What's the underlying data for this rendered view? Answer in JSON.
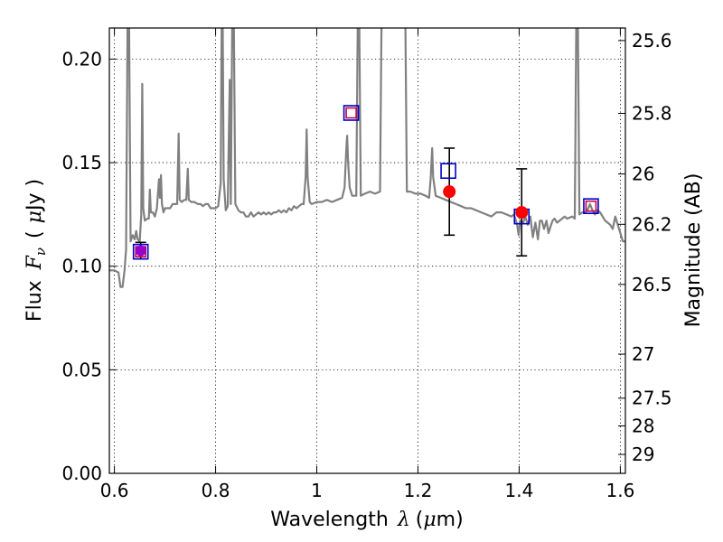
{
  "chart_data": {
    "type": "line",
    "xlabel": {
      "prefix": "Wavelength",
      "symbol": "λ",
      "unit_open": "(",
      "unit_mu": "μ",
      "unit_rest": "m)"
    },
    "ylabel": {
      "prefix": "Flux",
      "symbol": "F",
      "sub": "ν",
      "unit_open": "(",
      "unit_mu": "μ",
      "unit_rest": "Jy )"
    },
    "y2label": "Magnitude (AB)",
    "xlim": [
      0.59,
      1.61
    ],
    "ylim": [
      0.0,
      0.215
    ],
    "xticks": [
      {
        "value": 0.6,
        "label": "0.6"
      },
      {
        "value": 0.8,
        "label": "0.8"
      },
      {
        "value": 1.0,
        "label": "1"
      },
      {
        "value": 1.2,
        "label": "1.2"
      },
      {
        "value": 1.4,
        "label": "1.4"
      },
      {
        "value": 1.6,
        "label": "1.6"
      }
    ],
    "yticks": [
      {
        "value": 0.0,
        "label": "0.00"
      },
      {
        "value": 0.05,
        "label": "0.05"
      },
      {
        "value": 0.1,
        "label": "0.10"
      },
      {
        "value": 0.15,
        "label": "0.15"
      },
      {
        "value": 0.2,
        "label": "0.20"
      }
    ],
    "y2ticks": [
      {
        "mag": 25.6,
        "label": "25.6"
      },
      {
        "mag": 25.8,
        "label": "25.8"
      },
      {
        "mag": 26.0,
        "label": "26"
      },
      {
        "mag": 26.2,
        "label": "26.2"
      },
      {
        "mag": 26.5,
        "label": "26.5"
      },
      {
        "mag": 27.0,
        "label": "27"
      },
      {
        "mag": 27.5,
        "label": "27.5"
      },
      {
        "mag": 28.0,
        "label": "28"
      },
      {
        "mag": 29.0,
        "label": "29"
      }
    ],
    "grid": true,
    "model_spectrum": {
      "color": "#808080",
      "points": [
        [
          0.59,
          0.098
        ],
        [
          0.6,
          0.098
        ],
        [
          0.608,
          0.097
        ],
        [
          0.612,
          0.09
        ],
        [
          0.616,
          0.09
        ],
        [
          0.62,
          0.098
        ],
        [
          0.623,
          0.108
        ],
        [
          0.626,
          0.22
        ],
        [
          0.629,
          0.22
        ],
        [
          0.632,
          0.112
        ],
        [
          0.636,
          0.115
        ],
        [
          0.64,
          0.113
        ],
        [
          0.643,
          0.117
        ],
        [
          0.646,
          0.113
        ],
        [
          0.65,
          0.112
        ],
        [
          0.653,
          0.125
        ],
        [
          0.655,
          0.188
        ],
        [
          0.657,
          0.128
        ],
        [
          0.66,
          0.122
        ],
        [
          0.665,
          0.123
        ],
        [
          0.668,
          0.123
        ],
        [
          0.67,
          0.137
        ],
        [
          0.672,
          0.126
        ],
        [
          0.676,
          0.126
        ],
        [
          0.68,
          0.124
        ],
        [
          0.684,
          0.128
        ],
        [
          0.688,
          0.142
        ],
        [
          0.69,
          0.133
        ],
        [
          0.692,
          0.144
        ],
        [
          0.694,
          0.13
        ],
        [
          0.697,
          0.126
        ],
        [
          0.7,
          0.128
        ],
        [
          0.705,
          0.128
        ],
        [
          0.71,
          0.128
        ],
        [
          0.715,
          0.13
        ],
        [
          0.72,
          0.13
        ],
        [
          0.724,
          0.13
        ],
        [
          0.727,
          0.164
        ],
        [
          0.729,
          0.132
        ],
        [
          0.733,
          0.131
        ],
        [
          0.738,
          0.132
        ],
        [
          0.742,
          0.132
        ],
        [
          0.745,
          0.147
        ],
        [
          0.747,
          0.132
        ],
        [
          0.752,
          0.131
        ],
        [
          0.758,
          0.131
        ],
        [
          0.765,
          0.13
        ],
        [
          0.77,
          0.13
        ],
        [
          0.775,
          0.129
        ],
        [
          0.78,
          0.13
        ],
        [
          0.785,
          0.13
        ],
        [
          0.79,
          0.128
        ],
        [
          0.795,
          0.128
        ],
        [
          0.8,
          0.128
        ],
        [
          0.805,
          0.129
        ],
        [
          0.81,
          0.14
        ],
        [
          0.812,
          0.22
        ],
        [
          0.814,
          0.22
        ],
        [
          0.816,
          0.142
        ],
        [
          0.82,
          0.127
        ],
        [
          0.824,
          0.129
        ],
        [
          0.828,
          0.19
        ],
        [
          0.83,
          0.13
        ],
        [
          0.833,
          0.22
        ],
        [
          0.836,
          0.22
        ],
        [
          0.839,
          0.13
        ],
        [
          0.845,
          0.127
        ],
        [
          0.85,
          0.126
        ],
        [
          0.855,
          0.126
        ],
        [
          0.86,
          0.124
        ],
        [
          0.865,
          0.124
        ],
        [
          0.87,
          0.126
        ],
        [
          0.875,
          0.124
        ],
        [
          0.88,
          0.125
        ],
        [
          0.885,
          0.126
        ],
        [
          0.89,
          0.125
        ],
        [
          0.895,
          0.126
        ],
        [
          0.9,
          0.125
        ],
        [
          0.905,
          0.126
        ],
        [
          0.91,
          0.125
        ],
        [
          0.915,
          0.126
        ],
        [
          0.92,
          0.126
        ],
        [
          0.925,
          0.127
        ],
        [
          0.93,
          0.126
        ],
        [
          0.935,
          0.127
        ],
        [
          0.94,
          0.126
        ],
        [
          0.945,
          0.128
        ],
        [
          0.95,
          0.127
        ],
        [
          0.955,
          0.129
        ],
        [
          0.96,
          0.128
        ],
        [
          0.965,
          0.129
        ],
        [
          0.97,
          0.13
        ],
        [
          0.974,
          0.13
        ],
        [
          0.978,
          0.143
        ],
        [
          0.98,
          0.166
        ],
        [
          0.982,
          0.143
        ],
        [
          0.986,
          0.131
        ],
        [
          0.99,
          0.13
        ],
        [
          1.0,
          0.131
        ],
        [
          1.01,
          0.131
        ],
        [
          1.02,
          0.132
        ],
        [
          1.03,
          0.131
        ],
        [
          1.04,
          0.132
        ],
        [
          1.05,
          0.133
        ],
        [
          1.055,
          0.138
        ],
        [
          1.058,
          0.155
        ],
        [
          1.06,
          0.163
        ],
        [
          1.062,
          0.15
        ],
        [
          1.065,
          0.138
        ],
        [
          1.07,
          0.134
        ],
        [
          1.078,
          0.134
        ],
        [
          1.081,
          0.22
        ],
        [
          1.084,
          0.22
        ],
        [
          1.087,
          0.134
        ],
        [
          1.095,
          0.135
        ],
        [
          1.105,
          0.136
        ],
        [
          1.115,
          0.135
        ],
        [
          1.125,
          0.136
        ],
        [
          1.128,
          0.22
        ],
        [
          1.175,
          0.22
        ],
        [
          1.178,
          0.136
        ],
        [
          1.185,
          0.136
        ],
        [
          1.195,
          0.135
        ],
        [
          1.205,
          0.135
        ],
        [
          1.215,
          0.134
        ],
        [
          1.222,
          0.133
        ],
        [
          1.225,
          0.142
        ],
        [
          1.228,
          0.157
        ],
        [
          1.23,
          0.143
        ],
        [
          1.235,
          0.134
        ],
        [
          1.245,
          0.133
        ],
        [
          1.255,
          0.132
        ],
        [
          1.265,
          0.131
        ],
        [
          1.275,
          0.13
        ],
        [
          1.285,
          0.129
        ],
        [
          1.295,
          0.128
        ],
        [
          1.305,
          0.128
        ],
        [
          1.315,
          0.127
        ],
        [
          1.325,
          0.126
        ],
        [
          1.335,
          0.125
        ],
        [
          1.345,
          0.124
        ],
        [
          1.355,
          0.126
        ],
        [
          1.365,
          0.126
        ],
        [
          1.375,
          0.125
        ],
        [
          1.385,
          0.124
        ],
        [
          1.39,
          0.125
        ],
        [
          1.396,
          0.12
        ],
        [
          1.399,
          0.115
        ],
        [
          1.402,
          0.122
        ],
        [
          1.408,
          0.121
        ],
        [
          1.412,
          0.124
        ],
        [
          1.417,
          0.12
        ],
        [
          1.422,
          0.124
        ],
        [
          1.427,
          0.114
        ],
        [
          1.432,
          0.121
        ],
        [
          1.437,
          0.113
        ],
        [
          1.441,
          0.122
        ],
        [
          1.445,
          0.122
        ],
        [
          1.449,
          0.118
        ],
        [
          1.454,
          0.122
        ],
        [
          1.458,
          0.116
        ],
        [
          1.462,
          0.119
        ],
        [
          1.466,
          0.122
        ],
        [
          1.47,
          0.123
        ],
        [
          1.475,
          0.121
        ],
        [
          1.48,
          0.122
        ],
        [
          1.485,
          0.123
        ],
        [
          1.49,
          0.124
        ],
        [
          1.495,
          0.123
        ],
        [
          1.505,
          0.124
        ],
        [
          1.51,
          0.123
        ],
        [
          1.513,
          0.22
        ],
        [
          1.516,
          0.22
        ],
        [
          1.519,
          0.125
        ],
        [
          1.525,
          0.126
        ],
        [
          1.53,
          0.126
        ],
        [
          1.535,
          0.127
        ],
        [
          1.54,
          0.13
        ],
        [
          1.545,
          0.127
        ],
        [
          1.55,
          0.125
        ],
        [
          1.555,
          0.127
        ],
        [
          1.56,
          0.126
        ],
        [
          1.565,
          0.124
        ],
        [
          1.57,
          0.122
        ],
        [
          1.575,
          0.121
        ],
        [
          1.58,
          0.12
        ],
        [
          1.585,
          0.118
        ],
        [
          1.59,
          0.124
        ],
        [
          1.595,
          0.12
        ],
        [
          1.6,
          0.116
        ],
        [
          1.605,
          0.112
        ],
        [
          1.61,
          0.112
        ]
      ]
    },
    "observed": [
      {
        "x": 0.652,
        "y": 0.1075,
        "yerr": 0.004,
        "color": "#ff0000"
      },
      {
        "x": 1.262,
        "y": 0.136,
        "yerr": 0.021,
        "color": "#ff0000"
      },
      {
        "x": 1.405,
        "y": 0.126,
        "yerr": 0.021,
        "color": "#ff0000"
      }
    ],
    "model_photometry": [
      {
        "x": 0.652,
        "y": 0.107
      },
      {
        "x": 1.068,
        "y": 0.174
      },
      {
        "x": 1.26,
        "y": 0.146
      },
      {
        "x": 1.405,
        "y": 0.124
      },
      {
        "x": 1.542,
        "y": 0.129
      }
    ],
    "extra_markers": [
      {
        "x": 0.652,
        "y": 0.107
      },
      {
        "x": 1.068,
        "y": 0.174
      },
      {
        "x": 1.542,
        "y": 0.129
      }
    ],
    "colors": {
      "square_edge": "#0000cc",
      "small_square_edge": "#cc0044",
      "overlap_fill": "#9900cc"
    }
  }
}
